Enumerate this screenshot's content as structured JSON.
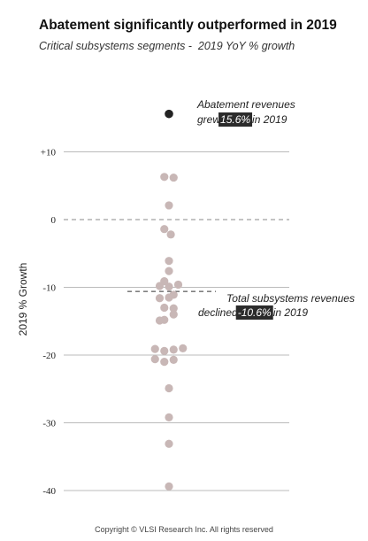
{
  "title": "Abatement significantly outperformed in 2019",
  "subtitle": "Critical subsystems segments -  2019 YoY % growth",
  "copyright": "Copyright © VLSI Research Inc. All rights reserved",
  "colors": {
    "dots": "#c8b7b6",
    "highlight_dot": "#222222",
    "highlight_box": "#2b2b2b",
    "grid": "#bbbbbb"
  },
  "chart_data": {
    "type": "scatter",
    "ylabel": "2019 % Growth",
    "ylim": [
      -41,
      17
    ],
    "yticks": [
      10,
      0,
      -10,
      -20,
      -30,
      -40
    ],
    "ytick_labels": [
      "+10",
      "0",
      "-10",
      "-20",
      "-30",
      "-40"
    ],
    "highlight": {
      "value": 15.6
    },
    "reference": {
      "value": -10.6
    },
    "points": [
      {
        "x": -0.5,
        "y": 6.3
      },
      {
        "x": 0.5,
        "y": 6.2
      },
      {
        "x": 0,
        "y": 2.1
      },
      {
        "x": -0.5,
        "y": -1.4
      },
      {
        "x": 0.2,
        "y": -2.2
      },
      {
        "x": 0,
        "y": -6.1
      },
      {
        "x": 0,
        "y": -7.6
      },
      {
        "x": -0.5,
        "y": -9.1
      },
      {
        "x": -1.0,
        "y": -9.8
      },
      {
        "x": 0.0,
        "y": -9.9
      },
      {
        "x": 1.0,
        "y": -9.6
      },
      {
        "x": 0.5,
        "y": -11.1
      },
      {
        "x": -1.0,
        "y": -11.6
      },
      {
        "x": 0.0,
        "y": -11.5
      },
      {
        "x": -0.5,
        "y": -13.0
      },
      {
        "x": 0.5,
        "y": -13.1
      },
      {
        "x": 0.5,
        "y": -14.0
      },
      {
        "x": -0.5,
        "y": -14.8
      },
      {
        "x": -1.0,
        "y": -14.9
      },
      {
        "x": -1.5,
        "y": -19.1
      },
      {
        "x": -0.5,
        "y": -19.4
      },
      {
        "x": 0.5,
        "y": -19.2
      },
      {
        "x": 1.5,
        "y": -19.0
      },
      {
        "x": -1.5,
        "y": -20.6
      },
      {
        "x": -0.5,
        "y": -21.0
      },
      {
        "x": 0.5,
        "y": -20.7
      },
      {
        "x": 0,
        "y": -24.9
      },
      {
        "x": 0,
        "y": -29.2
      },
      {
        "x": 0,
        "y": -33.1
      },
      {
        "x": 0,
        "y": -39.4
      }
    ],
    "annotations": [
      {
        "lines": [
          [
            "Abatement revenues"
          ],
          [
            "grew ",
            "15.6%",
            " in 2019"
          ]
        ],
        "highlight_part": 1
      },
      {
        "lines": [
          [
            "Total subsystems  revenues"
          ],
          [
            "declined  ",
            "-10.6%",
            " in 2019"
          ]
        ],
        "highlight_part": 1
      }
    ]
  }
}
